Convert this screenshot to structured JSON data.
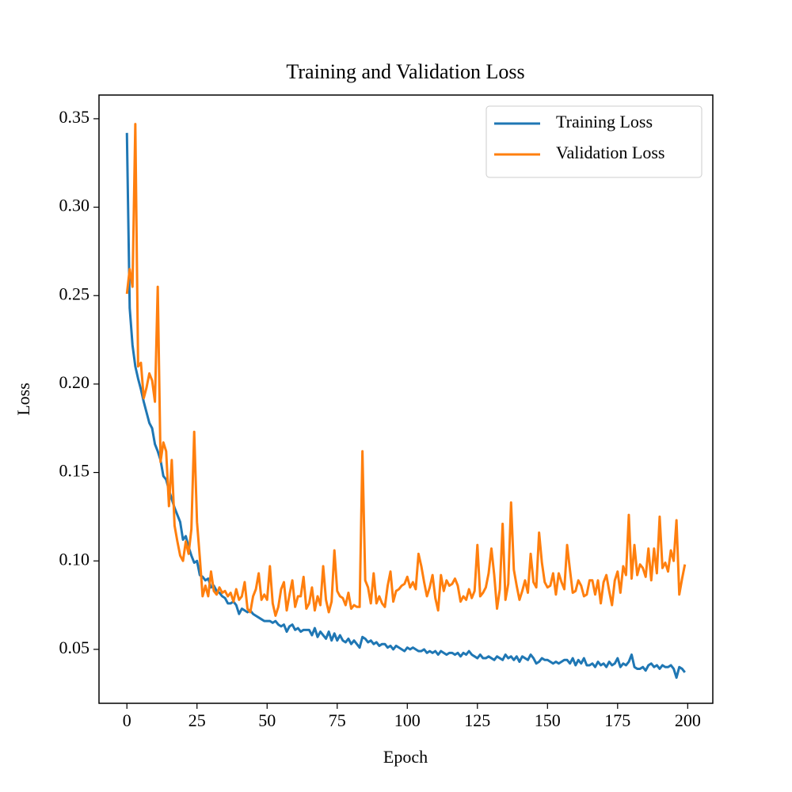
{
  "chart_data": {
    "type": "line",
    "title": "Training and Validation Loss",
    "xlabel": "Epoch",
    "ylabel": "Loss",
    "xlim": [
      -9.95,
      208.95
    ],
    "ylim": [
      0.0195,
      0.3634
    ],
    "xticks": [
      0,
      25,
      50,
      75,
      100,
      125,
      150,
      175,
      200
    ],
    "yticks": [
      0.05,
      {
        "value": 0.1,
        "label": "0.10"
      },
      0.15,
      {
        "value": 0.2,
        "label": "0.20"
      },
      0.25,
      {
        "value": 0.3,
        "label": "0.30"
      },
      0.35
    ],
    "grid": false,
    "legend": "upper right",
    "x": [
      0,
      1,
      2,
      3,
      4,
      5,
      6,
      7,
      8,
      9,
      10,
      11,
      12,
      13,
      14,
      15,
      16,
      17,
      18,
      19,
      20,
      21,
      22,
      23,
      24,
      25,
      26,
      27,
      28,
      29,
      30,
      31,
      32,
      33,
      34,
      35,
      36,
      37,
      38,
      39,
      40,
      41,
      42,
      43,
      44,
      45,
      46,
      47,
      48,
      49,
      50,
      51,
      52,
      53,
      54,
      55,
      56,
      57,
      58,
      59,
      60,
      61,
      62,
      63,
      64,
      65,
      66,
      67,
      68,
      69,
      70,
      71,
      72,
      73,
      74,
      75,
      76,
      77,
      78,
      79,
      80,
      81,
      82,
      83,
      84,
      85,
      86,
      87,
      88,
      89,
      90,
      91,
      92,
      93,
      94,
      95,
      96,
      97,
      98,
      99,
      100,
      101,
      102,
      103,
      104,
      105,
      106,
      107,
      108,
      109,
      110,
      111,
      112,
      113,
      114,
      115,
      116,
      117,
      118,
      119,
      120,
      121,
      122,
      123,
      124,
      125,
      126,
      127,
      128,
      129,
      130,
      131,
      132,
      133,
      134,
      135,
      136,
      137,
      138,
      139,
      140,
      141,
      142,
      143,
      144,
      145,
      146,
      147,
      148,
      149,
      150,
      151,
      152,
      153,
      154,
      155,
      156,
      157,
      158,
      159,
      160,
      161,
      162,
      163,
      164,
      165,
      166,
      167,
      168,
      169,
      170,
      171,
      172,
      173,
      174,
      175,
      176,
      177,
      178,
      179,
      180,
      181,
      182,
      183,
      184,
      185,
      186,
      187,
      188,
      189,
      190,
      191,
      192,
      193,
      194,
      195,
      196,
      197,
      198,
      199
    ],
    "series": [
      {
        "name": "Training Loss",
        "color": "#1f77b4",
        "values": [
          0.342,
          0.243,
          0.222,
          0.21,
          0.203,
          0.197,
          0.19,
          0.184,
          0.178,
          0.175,
          0.166,
          0.162,
          0.157,
          0.148,
          0.146,
          0.14,
          0.135,
          0.13,
          0.126,
          0.122,
          0.112,
          0.114,
          0.108,
          0.103,
          0.099,
          0.1,
          0.092,
          0.091,
          0.089,
          0.09,
          0.085,
          0.086,
          0.083,
          0.082,
          0.08,
          0.079,
          0.076,
          0.076,
          0.077,
          0.075,
          0.07,
          0.073,
          0.072,
          0.071,
          0.072,
          0.07,
          0.069,
          0.068,
          0.067,
          0.066,
          0.066,
          0.066,
          0.065,
          0.066,
          0.064,
          0.063,
          0.064,
          0.06,
          0.063,
          0.064,
          0.061,
          0.062,
          0.06,
          0.061,
          0.061,
          0.061,
          0.058,
          0.062,
          0.057,
          0.06,
          0.058,
          0.056,
          0.06,
          0.055,
          0.059,
          0.055,
          0.058,
          0.055,
          0.054,
          0.056,
          0.053,
          0.055,
          0.053,
          0.051,
          0.057,
          0.056,
          0.054,
          0.055,
          0.053,
          0.054,
          0.052,
          0.053,
          0.053,
          0.051,
          0.052,
          0.05,
          0.052,
          0.051,
          0.05,
          0.049,
          0.051,
          0.05,
          0.051,
          0.05,
          0.049,
          0.049,
          0.05,
          0.048,
          0.049,
          0.048,
          0.049,
          0.047,
          0.049,
          0.048,
          0.047,
          0.048,
          0.048,
          0.047,
          0.048,
          0.046,
          0.048,
          0.047,
          0.049,
          0.047,
          0.046,
          0.045,
          0.047,
          0.045,
          0.045,
          0.046,
          0.045,
          0.044,
          0.046,
          0.045,
          0.044,
          0.047,
          0.045,
          0.046,
          0.044,
          0.046,
          0.043,
          0.046,
          0.045,
          0.044,
          0.047,
          0.045,
          0.042,
          0.043,
          0.045,
          0.044,
          0.044,
          0.043,
          0.042,
          0.043,
          0.042,
          0.043,
          0.044,
          0.044,
          0.042,
          0.045,
          0.041,
          0.044,
          0.042,
          0.045,
          0.041,
          0.041,
          0.042,
          0.04,
          0.043,
          0.041,
          0.042,
          0.04,
          0.043,
          0.041,
          0.042,
          0.045,
          0.04,
          0.042,
          0.041,
          0.043,
          0.047,
          0.04,
          0.039,
          0.039,
          0.04,
          0.038,
          0.041,
          0.042,
          0.04,
          0.041,
          0.039,
          0.041,
          0.04,
          0.04,
          0.041,
          0.039,
          0.034,
          0.04,
          0.039,
          0.037
        ]
      },
      {
        "name": "Validation Loss",
        "color": "#ff7f0e",
        "values": [
          0.251,
          0.265,
          0.255,
          0.347,
          0.21,
          0.212,
          0.192,
          0.198,
          0.206,
          0.202,
          0.19,
          0.255,
          0.156,
          0.167,
          0.162,
          0.131,
          0.157,
          0.12,
          0.111,
          0.103,
          0.1,
          0.111,
          0.104,
          0.118,
          0.173,
          0.122,
          0.102,
          0.08,
          0.086,
          0.08,
          0.094,
          0.083,
          0.081,
          0.085,
          0.082,
          0.083,
          0.08,
          0.082,
          0.077,
          0.084,
          0.078,
          0.08,
          0.088,
          0.073,
          0.071,
          0.08,
          0.084,
          0.093,
          0.078,
          0.081,
          0.078,
          0.097,
          0.076,
          0.069,
          0.074,
          0.084,
          0.088,
          0.072,
          0.081,
          0.089,
          0.074,
          0.08,
          0.08,
          0.091,
          0.073,
          0.076,
          0.085,
          0.072,
          0.08,
          0.075,
          0.097,
          0.078,
          0.071,
          0.077,
          0.106,
          0.083,
          0.08,
          0.079,
          0.075,
          0.082,
          0.073,
          0.075,
          0.074,
          0.074,
          0.162,
          0.089,
          0.085,
          0.076,
          0.093,
          0.076,
          0.08,
          0.076,
          0.074,
          0.086,
          0.094,
          0.077,
          0.083,
          0.084,
          0.086,
          0.087,
          0.091,
          0.085,
          0.088,
          0.084,
          0.104,
          0.097,
          0.088,
          0.08,
          0.085,
          0.092,
          0.079,
          0.072,
          0.092,
          0.083,
          0.089,
          0.086,
          0.087,
          0.09,
          0.086,
          0.077,
          0.08,
          0.078,
          0.084,
          0.079,
          0.083,
          0.109,
          0.08,
          0.082,
          0.085,
          0.093,
          0.107,
          0.092,
          0.073,
          0.084,
          0.121,
          0.078,
          0.087,
          0.133,
          0.095,
          0.086,
          0.078,
          0.083,
          0.089,
          0.082,
          0.104,
          0.088,
          0.085,
          0.116,
          0.099,
          0.088,
          0.085,
          0.086,
          0.093,
          0.081,
          0.093,
          0.088,
          0.084,
          0.109,
          0.095,
          0.082,
          0.083,
          0.089,
          0.086,
          0.08,
          0.081,
          0.089,
          0.089,
          0.081,
          0.089,
          0.076,
          0.088,
          0.092,
          0.083,
          0.075,
          0.089,
          0.094,
          0.082,
          0.097,
          0.092,
          0.126,
          0.09,
          0.109,
          0.092,
          0.098,
          0.096,
          0.091,
          0.107,
          0.089,
          0.107,
          0.093,
          0.125,
          0.096,
          0.099,
          0.094,
          0.106,
          0.1,
          0.123,
          0.081,
          0.09,
          0.098
        ]
      }
    ]
  }
}
